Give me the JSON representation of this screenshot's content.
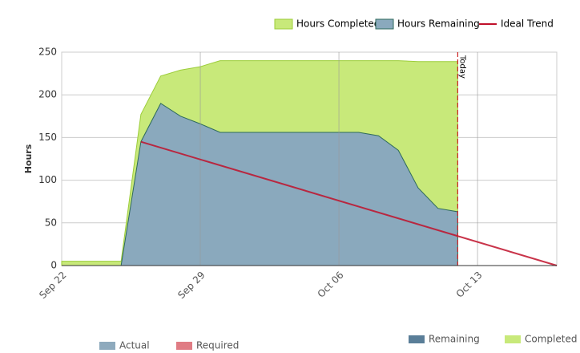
{
  "chart_data": {
    "type": "burndown",
    "y_label": "Hours",
    "x": [
      0,
      1,
      2,
      3,
      4,
      5,
      6,
      7,
      8,
      9,
      10,
      11,
      12,
      13,
      14,
      15,
      16,
      17,
      18,
      19,
      20
    ],
    "xlim": [
      0,
      25
    ],
    "xticks": [
      {
        "value": 0,
        "label": "Sep 22"
      },
      {
        "value": 7,
        "label": "Sep 29"
      },
      {
        "value": 14,
        "label": "Oct 06"
      },
      {
        "value": 21,
        "label": "Oct 13"
      }
    ],
    "ylim": [
      0,
      250
    ],
    "yticks": [
      0,
      50,
      100,
      150,
      200,
      250
    ],
    "grid": true,
    "series": [
      {
        "name": "Hours Completed",
        "color": "#c8e97a",
        "stroke": "#9ccd3a",
        "values": [
          5,
          5,
          5,
          5,
          32,
          32,
          54,
          67,
          84,
          84,
          84,
          84,
          84,
          84,
          84,
          84,
          88,
          105,
          148,
          172,
          176
        ]
      },
      {
        "name": "Hours Remaining",
        "color": "#8aa9bd",
        "stroke": "#2e6a5c",
        "values": [
          0,
          0,
          0,
          0,
          145,
          190,
          175,
          166,
          156,
          156,
          156,
          156,
          156,
          156,
          156,
          156,
          152,
          135,
          91,
          67,
          63
        ]
      },
      {
        "name": "Ideal Trend",
        "color": "#c0102a",
        "x": [
          4,
          25
        ],
        "values": [
          145,
          0
        ]
      }
    ],
    "today": {
      "label": "Today",
      "x": 20,
      "color": "#cc2222"
    },
    "bottom_left_legend": [
      {
        "name": "Actual",
        "color": "#8eaabd"
      },
      {
        "name": "Required",
        "color": "#e07c84"
      }
    ],
    "bottom_right_legend": [
      {
        "name": "Remaining",
        "color": "#5a7e98"
      },
      {
        "name": "Completed",
        "color": "#c8e97a"
      }
    ]
  }
}
